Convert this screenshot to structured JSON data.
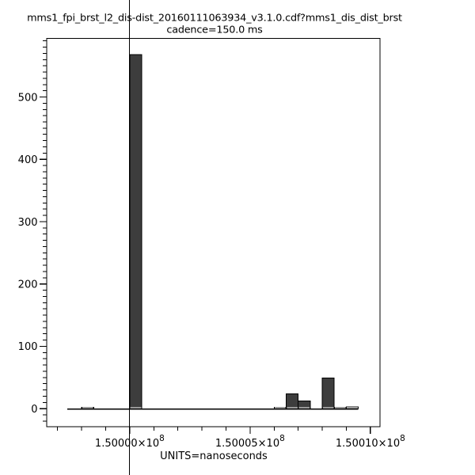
{
  "figure": {
    "bg_color": "#ffffff"
  },
  "chart_data": {
    "type": "bar",
    "title_line1": "mms1_fpi_brst_l2_dis-dist_20160111063934_v3.1.0.cdf?mms1_dis_dist_brst",
    "title_line2": "cadence=150.0 ms",
    "xlabel": "UNITS=nanoseconds",
    "ylabel": "",
    "x_units": "nanoseconds",
    "bin_width_ns": 500,
    "bins": [
      {
        "left_ns": 149998000,
        "count": 2
      },
      {
        "left_ns": 150000000,
        "count": 568
      },
      {
        "left_ns": 150006000,
        "count": 2
      },
      {
        "left_ns": 150006500,
        "count": 24
      },
      {
        "left_ns": 150007000,
        "count": 12
      },
      {
        "left_ns": 150008000,
        "count": 49
      },
      {
        "left_ns": 150008500,
        "count": 2
      },
      {
        "left_ns": 150009000,
        "count": 3
      }
    ],
    "baseline_ns": {
      "start": 149997400,
      "end": 150009500
    },
    "xlim": [
      149996550,
      150010400
    ],
    "ylim": [
      -29,
      594
    ],
    "x_major_ticks": [
      {
        "value": 150000000,
        "label_base": "1.50000×10",
        "label_exp": "8"
      },
      {
        "value": 150005000,
        "label_base": "1.50005×10",
        "label_exp": "8"
      },
      {
        "value": 150010000,
        "label_base": "1.50010×10",
        "label_exp": "8"
      }
    ],
    "x_minor_step": 1000,
    "y_major_ticks": [
      0,
      100,
      200,
      300,
      400,
      500
    ],
    "y_minor_step": 10,
    "crosshair_ns": 150000000,
    "grid": false,
    "legend": null,
    "colors": {
      "bar_fill": "#3d3d3d",
      "bar_edge": "#000000",
      "bar_base_strip": "#999999",
      "axis": "#000000",
      "text": "#000000",
      "crosshair": "#000000"
    }
  }
}
